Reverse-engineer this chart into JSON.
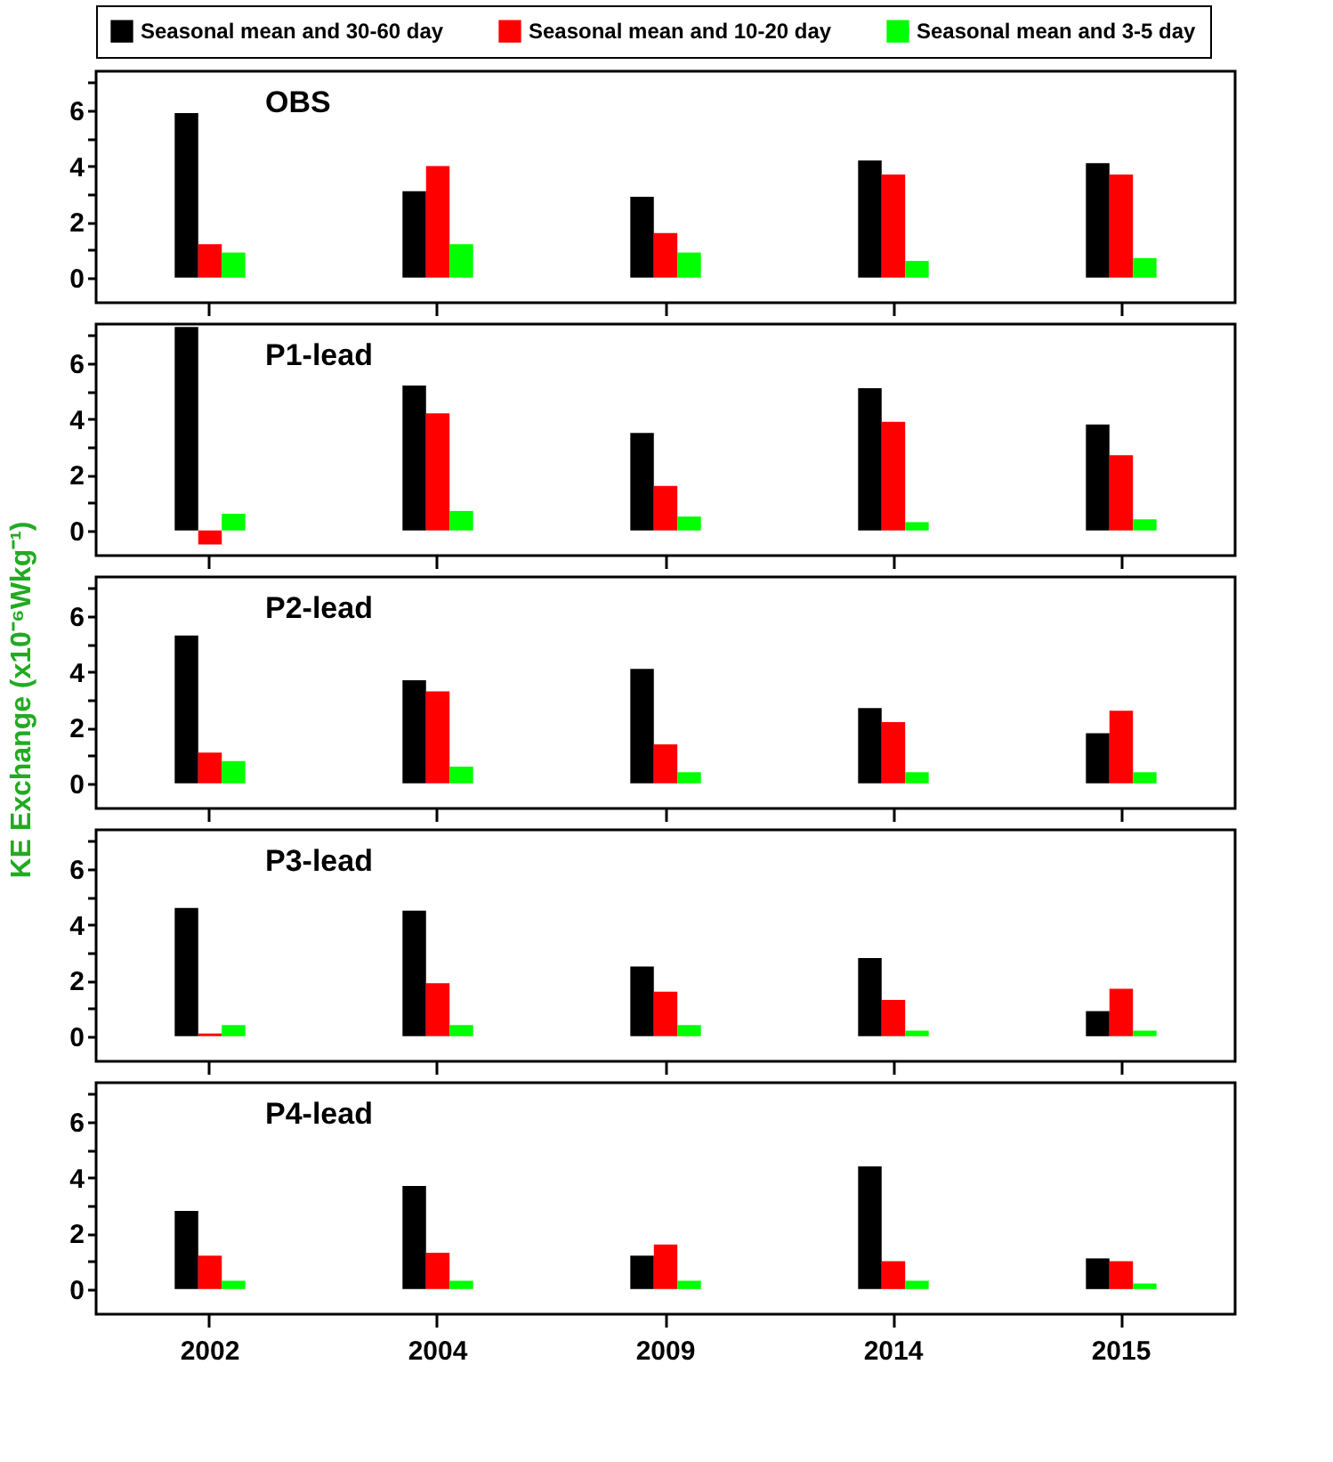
{
  "chart_data": [
    {
      "type": "bar",
      "title": "OBS",
      "categories": [
        "2002",
        "2004",
        "2009",
        "2014",
        "2015"
      ],
      "ylim": [
        -0.9,
        7.4
      ],
      "yticks": [
        0,
        {
          "value": 1,
          "label": null
        },
        2,
        {
          "value": 3,
          "label": null
        },
        4,
        {
          "value": 5,
          "label": null
        },
        6,
        {
          "value": 7,
          "label": null
        }
      ],
      "tick_labels": "y",
      "legend": "top",
      "grid": false,
      "series": [
        {
          "name": "Seasonal mean and 30-60 day",
          "color": "#000000",
          "values": [
            5.9,
            3.1,
            2.9,
            4.2,
            4.1
          ]
        },
        {
          "name": "Seasonal mean and 10-20 day",
          "color": "#ff0000",
          "values": [
            1.2,
            4.0,
            1.6,
            3.7,
            3.7
          ]
        },
        {
          "name": "Seasonal mean and 3-5 day",
          "color": "#00ff00",
          "values": [
            0.9,
            1.2,
            0.9,
            0.6,
            0.7
          ]
        }
      ]
    },
    {
      "type": "bar",
      "title": "P1-lead",
      "categories": [
        "2002",
        "2004",
        "2009",
        "2014",
        "2015"
      ],
      "ylim": [
        -0.9,
        7.4
      ],
      "yticks": [
        0,
        {
          "value": 1,
          "label": null
        },
        2,
        {
          "value": 3,
          "label": null
        },
        4,
        {
          "value": 5,
          "label": null
        },
        6,
        {
          "value": 7,
          "label": null
        }
      ],
      "tick_labels": "y",
      "grid": false,
      "series": [
        {
          "color": "#000000",
          "values": [
            7.3,
            5.2,
            3.5,
            5.1,
            3.8
          ]
        },
        {
          "color": "#ff0000",
          "values": [
            -0.5,
            4.2,
            1.6,
            3.9,
            2.7
          ]
        },
        {
          "color": "#00ff00",
          "values": [
            0.6,
            0.7,
            0.5,
            0.3,
            0.4
          ]
        }
      ]
    },
    {
      "type": "bar",
      "title": "P2-lead",
      "ylabel": "KE Exchange (x10⁻⁶Wkg⁻¹)",
      "categories": [
        "2002",
        "2004",
        "2009",
        "2014",
        "2015"
      ],
      "ylim": [
        -0.9,
        7.4
      ],
      "yticks": [
        0,
        {
          "value": 1,
          "label": null
        },
        2,
        {
          "value": 3,
          "label": null
        },
        4,
        {
          "value": 5,
          "label": null
        },
        6,
        {
          "value": 7,
          "label": null
        }
      ],
      "tick_labels": "y",
      "grid": false,
      "series": [
        {
          "color": "#000000",
          "values": [
            5.3,
            3.7,
            4.1,
            2.7,
            1.8
          ]
        },
        {
          "color": "#ff0000",
          "values": [
            1.1,
            3.3,
            1.4,
            2.2,
            2.6
          ]
        },
        {
          "color": "#00ff00",
          "values": [
            0.8,
            0.6,
            0.4,
            0.4,
            0.4
          ]
        }
      ]
    },
    {
      "type": "bar",
      "title": "P3-lead",
      "categories": [
        "2002",
        "2004",
        "2009",
        "2014",
        "2015"
      ],
      "ylim": [
        -0.9,
        7.4
      ],
      "yticks": [
        0,
        {
          "value": 1,
          "label": null
        },
        2,
        {
          "value": 3,
          "label": null
        },
        4,
        {
          "value": 5,
          "label": null
        },
        6,
        {
          "value": 7,
          "label": null
        }
      ],
      "tick_labels": "y",
      "grid": false,
      "series": [
        {
          "color": "#000000",
          "values": [
            4.6,
            4.5,
            2.5,
            2.8,
            0.9
          ]
        },
        {
          "color": "#ff0000",
          "values": [
            0.1,
            1.9,
            1.6,
            1.3,
            1.7
          ]
        },
        {
          "color": "#00ff00",
          "values": [
            0.4,
            0.4,
            0.4,
            0.2,
            0.2
          ]
        }
      ]
    },
    {
      "type": "bar",
      "title": "P4-lead",
      "categories": [
        "2002",
        "2004",
        "2009",
        "2014",
        "2015"
      ],
      "ylim": [
        -0.9,
        7.4
      ],
      "yticks": [
        0,
        {
          "value": 1,
          "label": null
        },
        2,
        {
          "value": 3,
          "label": null
        },
        4,
        {
          "value": 5,
          "label": null
        },
        6,
        {
          "value": 7,
          "label": null
        }
      ],
      "grid": false,
      "series": [
        {
          "color": "#000000",
          "values": [
            2.8,
            3.7,
            1.2,
            4.4,
            1.1
          ]
        },
        {
          "color": "#ff0000",
          "values": [
            1.2,
            1.3,
            1.6,
            1.0,
            1.0
          ]
        },
        {
          "color": "#00ff00",
          "values": [
            0.3,
            0.3,
            0.3,
            0.3,
            0.2
          ]
        }
      ]
    }
  ]
}
